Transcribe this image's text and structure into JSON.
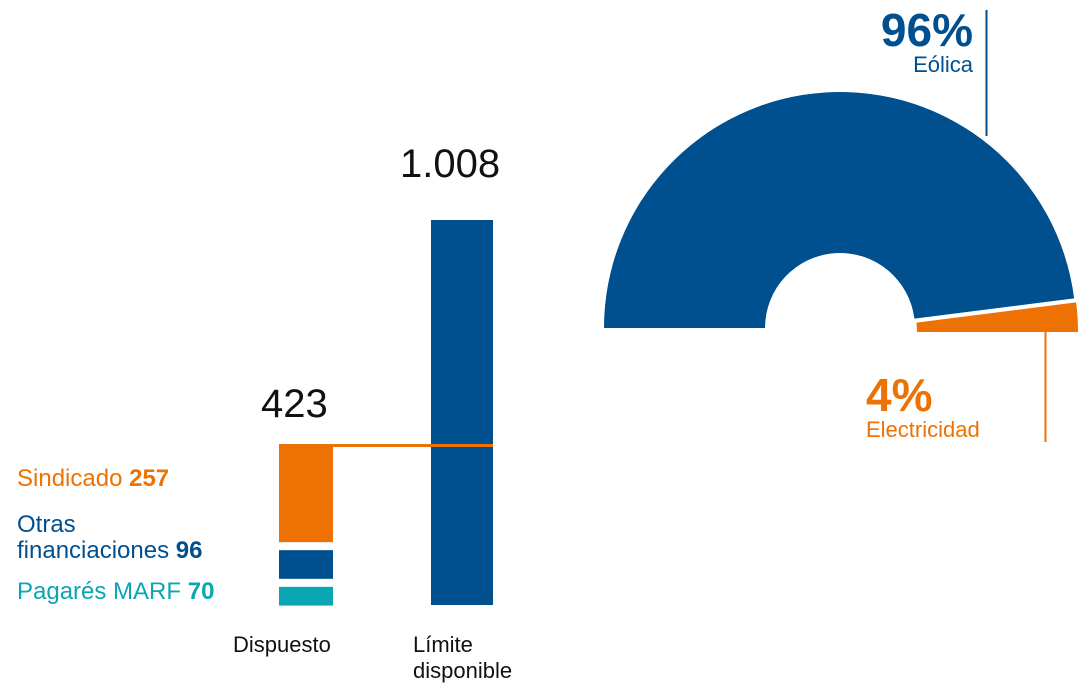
{
  "colors": {
    "orange": "#EE7203",
    "blue": "#004F8F",
    "teal": "#0AA6B3",
    "text": "#111111"
  },
  "chart_data": [
    {
      "type": "bar",
      "categories": [
        "Dispuesto",
        "Límite disponible"
      ],
      "totals": {
        "dispuesto": {
          "label": "423",
          "value": 423
        },
        "limite": {
          "label": "1.008",
          "value": 1008
        }
      },
      "series": [
        {
          "name": "Sindicado",
          "value": 257,
          "value_label": "257",
          "color": "#EE7203"
        },
        {
          "name": "Otras financiaciones",
          "name_lines": [
            "Otras",
            "financiaciones"
          ],
          "value": 96,
          "value_label": "96",
          "color": "#004F8F"
        },
        {
          "name": "Pagarés MARF",
          "value": 70,
          "value_label": "70",
          "color": "#0AA6B3"
        }
      ],
      "xlabels": {
        "dispuesto": "Dispuesto",
        "limite_lines": [
          "Límite",
          "disponible"
        ]
      }
    },
    {
      "type": "pie",
      "style": "half-donut",
      "slices": [
        {
          "name": "Eólica",
          "value": 96,
          "label": "96%",
          "color": "#004F8F"
        },
        {
          "name": "Electricidad",
          "value": 4,
          "label": "4%",
          "color": "#EE7203"
        }
      ]
    }
  ]
}
